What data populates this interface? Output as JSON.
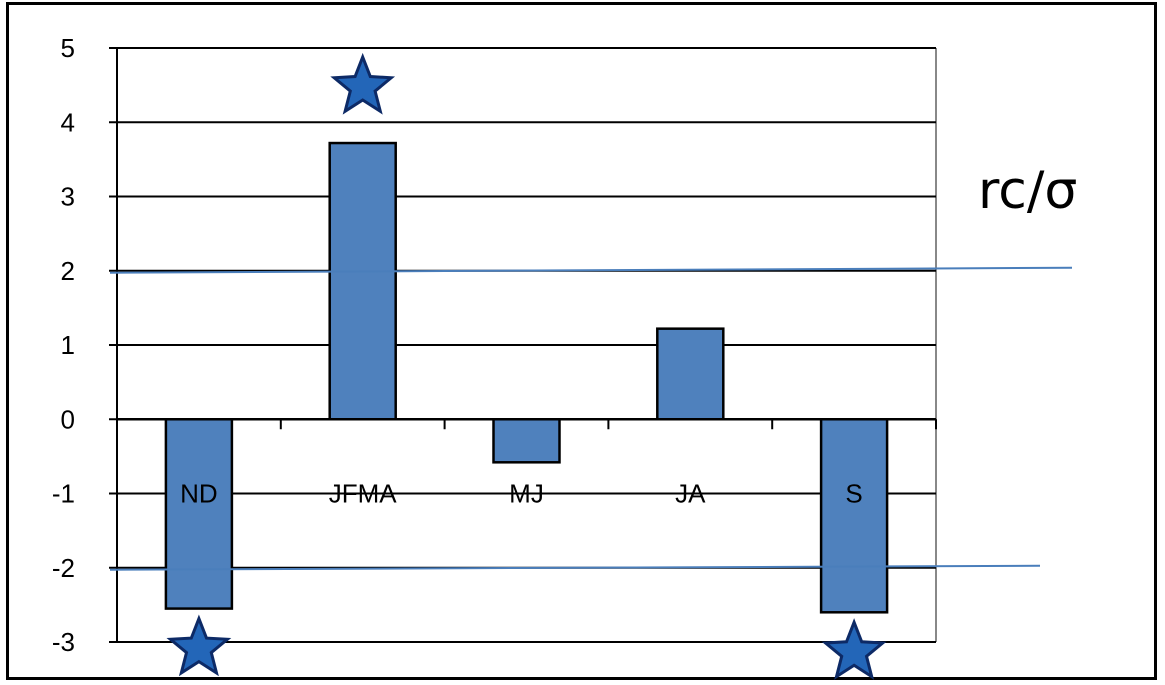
{
  "chart_data": {
    "type": "bar",
    "categories": [
      "ND",
      "JFMA",
      "MJ",
      "JA",
      "S"
    ],
    "values": [
      -2.55,
      3.72,
      -0.58,
      1.22,
      -2.6
    ],
    "ylim": [
      -3,
      5
    ],
    "yticks": [
      5,
      4,
      3,
      2,
      1,
      0,
      -1,
      -2,
      -3
    ],
    "ytick_labels": [
      "5",
      "4",
      "3",
      "2",
      "1",
      "0",
      "-1",
      "-2",
      "-3"
    ],
    "grid": true,
    "threshold_lines": [
      2,
      -2
    ],
    "star_markers": [
      {
        "category": "ND",
        "position": "below-bar"
      },
      {
        "category": "JFMA",
        "position": "above-bar"
      },
      {
        "category": "S",
        "position": "below-bar"
      }
    ],
    "side_label": "rc/σ",
    "colors": {
      "bar_fill": "#4f81bd",
      "bar_stroke": "#000000",
      "threshold_line": "#4a7ebb",
      "star_fill": "#2366b8",
      "star_stroke": "#0d2a66",
      "grid": "#000000",
      "plot_border": "#888888"
    }
  }
}
